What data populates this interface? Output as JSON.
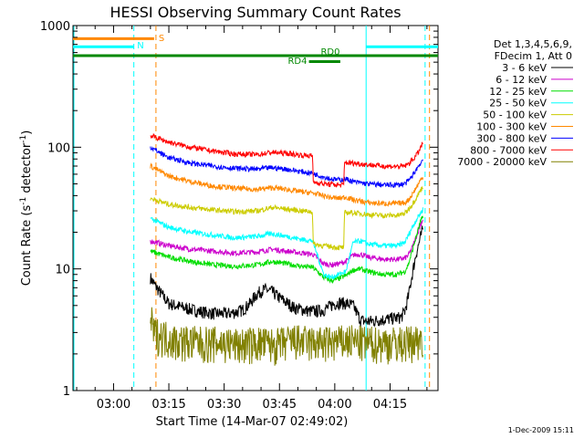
{
  "chart_data": {
    "type": "line",
    "title": "HESSI Observing Summary Count Rates",
    "xlabel": "Start Time (14-Mar-07 02:49:02)",
    "ylabel_main": "Count Rate (s",
    "ylabel_sup1": "-1",
    "ylabel_mid": " detector",
    "ylabel_sup2": "-1",
    "ylabel_end": ")",
    "yscale": "log",
    "ylim": [
      1,
      1000
    ],
    "xlim_minutes_after_0249": [
      0,
      99
    ],
    "x_ticks": [
      {
        "label": "03:00",
        "min": 11
      },
      {
        "label": "03:15",
        "min": 26
      },
      {
        "label": "03:30",
        "min": 41
      },
      {
        "label": "03:45",
        "min": 56
      },
      {
        "label": "04:00",
        "min": 71
      },
      {
        "label": "04:15",
        "min": 86
      }
    ],
    "y_ticks": [
      {
        "label": "1",
        "value": 1
      },
      {
        "label": "10",
        "value": 10
      },
      {
        "label": "100",
        "value": 100
      },
      {
        "label": "1000",
        "value": 1000
      }
    ],
    "legend_header": [
      "Det 1,3,4,5,6,9,",
      "FDecim 1, Att 0"
    ],
    "legend_position": "right",
    "series": [
      {
        "name": "3 - 6 keV",
        "color": "#000000",
        "x": [
          21,
          22,
          24,
          26,
          30,
          34,
          38,
          42,
          44,
          46,
          48,
          50,
          52,
          54,
          56,
          60,
          64,
          66,
          68,
          70,
          72,
          74,
          76,
          78,
          80,
          83,
          86,
          89,
          90,
          91,
          92,
          93,
          94,
          95
        ],
        "y": [
          8.5,
          7.5,
          6.2,
          5.2,
          4.8,
          4.5,
          4.3,
          4.3,
          4.4,
          4.6,
          5.2,
          6.3,
          6.8,
          6.5,
          5.8,
          4.8,
          4.5,
          4.5,
          4.6,
          5.0,
          5.3,
          5.2,
          5.0,
          3.8,
          3.7,
          3.8,
          3.9,
          4.0,
          4.5,
          6,
          9,
          13,
          17,
          22
        ]
      },
      {
        "name": "6 - 12 keV",
        "color": "#cc00cc",
        "x": [
          21,
          26,
          32,
          38,
          44,
          50,
          54,
          58,
          62,
          65,
          68,
          70,
          72,
          74,
          76,
          78,
          80,
          84,
          88,
          90,
          91,
          92,
          93,
          94,
          95
        ],
        "y": [
          17,
          15.5,
          14.5,
          14,
          13.5,
          13.8,
          14.5,
          14,
          13.5,
          13.2,
          11,
          10.8,
          11,
          11.5,
          13,
          13.2,
          12.5,
          12,
          12,
          12.2,
          13,
          15,
          18,
          22,
          26
        ]
      },
      {
        "name": "12 - 25 keV",
        "color": "#00dd00",
        "x": [
          21,
          26,
          32,
          38,
          44,
          50,
          54,
          58,
          62,
          65,
          68,
          70,
          72,
          74,
          76,
          78,
          80,
          84,
          88,
          90,
          91,
          92,
          93,
          94,
          95
        ],
        "y": [
          14,
          12.5,
          11.5,
          10.8,
          10.5,
          10.8,
          11.5,
          11,
          10.5,
          10.3,
          8.5,
          8,
          8.3,
          8.8,
          9.8,
          10,
          9.5,
          9,
          9,
          9.5,
          11,
          14,
          18,
          23,
          28
        ]
      },
      {
        "name": "25 - 50 keV",
        "color": "#00ffff",
        "x": [
          21,
          26,
          32,
          38,
          44,
          50,
          54,
          58,
          62,
          65,
          68,
          70,
          72,
          74,
          76,
          78,
          80,
          84,
          88,
          90,
          91,
          92,
          93,
          94,
          95
        ],
        "y": [
          26,
          22,
          20,
          19,
          18,
          18.5,
          19.5,
          18.5,
          17.5,
          17,
          9,
          8.5,
          9,
          9.5,
          16.5,
          17,
          16,
          15.5,
          15.5,
          16.5,
          19,
          22,
          25,
          28,
          31
        ]
      },
      {
        "name": "50 - 100 keV",
        "color": "#cccc00",
        "x": [
          21,
          26,
          32,
          38,
          44,
          50,
          54,
          58,
          62,
          65,
          65.1,
          68,
          72,
          73.5,
          73.6,
          76,
          80,
          84,
          88,
          90,
          91,
          92,
          93,
          94,
          95
        ],
        "y": [
          38,
          34,
          32,
          30.5,
          29.5,
          30,
          32,
          31,
          30,
          29.5,
          16,
          15.5,
          15,
          15,
          29,
          29,
          28,
          27.5,
          27.5,
          28.5,
          31,
          34,
          38,
          43,
          48
        ]
      },
      {
        "name": "100 - 300 keV",
        "color": "#ff8800",
        "x": [
          21,
          26,
          32,
          38,
          44,
          50,
          54,
          58,
          62,
          65,
          68,
          70,
          72,
          74,
          76,
          78,
          80,
          84,
          88,
          90,
          91,
          92,
          93,
          94,
          95
        ],
        "y": [
          70,
          58,
          52,
          48,
          46,
          45,
          46.5,
          45,
          43,
          42,
          40,
          38.5,
          38,
          39,
          37,
          36,
          35,
          34.5,
          34.5,
          35,
          37,
          41,
          46,
          52,
          58
        ]
      },
      {
        "name": "300 - 800 keV",
        "color": "#0000ff",
        "x": [
          21,
          26,
          32,
          38,
          44,
          50,
          54,
          58,
          62,
          65,
          68,
          70,
          72,
          74,
          76,
          78,
          80,
          84,
          88,
          90,
          91,
          92,
          93,
          94,
          95
        ],
        "y": [
          100,
          82,
          74,
          70,
          67,
          66,
          68,
          66,
          63,
          61,
          57,
          55,
          54,
          55,
          52,
          51,
          50,
          49,
          49,
          50,
          53,
          58,
          65,
          72,
          80
        ]
      },
      {
        "name": "800 - 7000 keV",
        "color": "#ff0000",
        "x": [
          21,
          26,
          32,
          38,
          44,
          50,
          54,
          58,
          62,
          65,
          65.1,
          68,
          72,
          73.5,
          73.6,
          76,
          80,
          84,
          88,
          90,
          91,
          92,
          93,
          94,
          95
        ],
        "y": [
          125,
          110,
          100,
          93,
          88,
          87,
          91,
          89,
          86,
          85,
          52,
          50,
          49,
          49,
          75,
          74,
          72,
          70,
          69.5,
          70,
          73,
          78,
          85,
          95,
          110
        ]
      },
      {
        "name": "7000 - 20000 keV",
        "color": "#808000",
        "x": [
          21,
          22,
          25,
          28,
          35,
          40,
          45,
          50,
          55,
          60,
          65,
          70,
          75,
          80,
          85,
          90,
          93,
          95
        ],
        "y": [
          4,
          3,
          2.8,
          2.6,
          2.5,
          2.5,
          2.4,
          2.5,
          2.4,
          2.6,
          2.5,
          2.5,
          2.6,
          2.5,
          2.5,
          2.5,
          2.6,
          2.8
        ]
      }
    ],
    "annotations": [
      {
        "label": "S",
        "color": "#ff8800"
      },
      {
        "label": "N",
        "color": "#00ffff"
      },
      {
        "label": "RD0",
        "color": "#008800"
      },
      {
        "label": "RD4",
        "color": "#008800"
      }
    ],
    "flag_bars": [
      {
        "color": "#ff8800",
        "x": [
          0,
          22
        ],
        "level": 780
      },
      {
        "color": "#00ffff",
        "x": [
          0,
          16.5
        ],
        "level": 670
      },
      {
        "color": "#00ffff",
        "x": [
          79.5,
          99
        ],
        "level": 670
      },
      {
        "color": "#008800",
        "x": [
          0,
          99
        ],
        "level": 565
      },
      {
        "color": "#008800",
        "x": [
          64,
          72.5
        ],
        "level": 505
      }
    ],
    "vertical_markers": [
      {
        "color": "#00ffff",
        "x": 0,
        "style": "solid"
      },
      {
        "color": "#00ffff",
        "x": 16.5,
        "style": "dashed"
      },
      {
        "color": "#ff8800",
        "x": 22.5,
        "style": "dashed"
      },
      {
        "color": "#00ffff",
        "x": 79.5,
        "style": "solid"
      },
      {
        "color": "#00ffff",
        "x": 95.5,
        "style": "dashed"
      },
      {
        "color": "#ff8800",
        "x": 96.7,
        "style": "dashed"
      }
    ]
  },
  "footer": {
    "timestamp": "1-Dec-2009 15:11"
  }
}
